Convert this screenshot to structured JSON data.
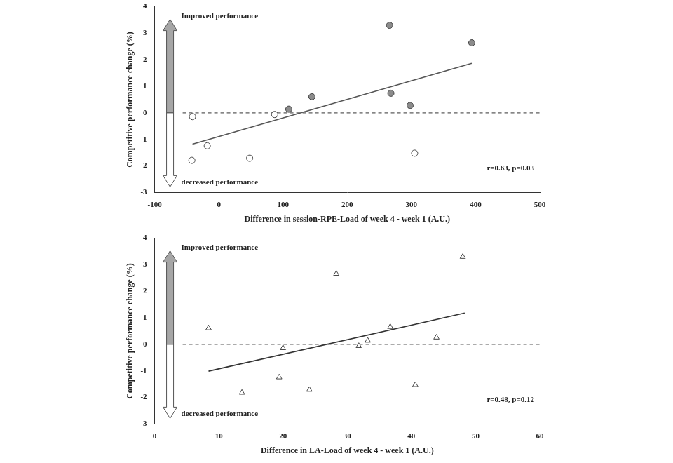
{
  "chart_data": [
    {
      "type": "scatter",
      "x_label": "Difference in session-RPE-Load of week 4 - week 1 (A.U.)",
      "y_label": "Competitive performance change (%)",
      "xlim": [
        -100,
        500
      ],
      "xticks": [
        -100,
        0,
        100,
        200,
        300,
        400,
        500
      ],
      "ylim": [
        -3,
        4
      ],
      "yticks": [
        -3,
        -2,
        -1,
        0,
        1,
        2,
        3,
        4
      ],
      "grid": false,
      "arrow_labels": {
        "up": "Improved performance",
        "down": "decreased performance"
      },
      "stats_label": "r=0.63, p=0.03",
      "reference_lines": [
        {
          "y": 0,
          "line_style": "dashed"
        }
      ],
      "series": [
        {
          "marker": "circle",
          "color": "#8c8c8c",
          "x": [
            109,
            145,
            266,
            268,
            298,
            394
          ],
          "values": [
            0.14,
            0.61,
            3.3,
            0.74,
            0.28,
            2.64
          ]
        },
        {
          "marker": "circle",
          "color": "#ffffff",
          "x": [
            -41,
            -42,
            -18,
            48,
            87,
            305
          ],
          "values": [
            -0.14,
            -1.79,
            -1.24,
            -1.71,
            -0.06,
            -1.52
          ]
        },
        {
          "type": "line",
          "line_style": "solid",
          "color": "#555555",
          "x": [
            -41,
            394
          ],
          "values": [
            -1.18,
            1.87
          ]
        }
      ]
    },
    {
      "type": "scatter",
      "x_label": "Difference in LA-Load of week 4 - week 1 (A.U.)",
      "y_label": "Competitive performance change (%)",
      "xlim": [
        0,
        60
      ],
      "xticks": [
        0,
        10,
        20,
        30,
        40,
        50,
        60
      ],
      "ylim": [
        -3,
        4
      ],
      "yticks": [
        -3,
        -2,
        -1,
        0,
        1,
        2,
        3,
        4
      ],
      "grid": false,
      "arrow_labels": {
        "up": "Improved performance",
        "down": "decreased performance"
      },
      "stats_label": "r=0.48, p=0.12",
      "reference_lines": [
        {
          "y": 0,
          "line_style": "dashed"
        }
      ],
      "series": [
        {
          "marker": "triangle",
          "color": "#ffffff",
          "x": [
            8.4,
            13.6,
            19.4,
            20,
            24.1,
            28.3,
            31.8,
            33.2,
            36.7,
            40.6,
            43.9,
            48
          ],
          "values": [
            0.61,
            -1.82,
            -1.24,
            -0.14,
            -1.71,
            2.66,
            -0.06,
            0.14,
            0.66,
            -1.53,
            0.26,
            3.3
          ]
        },
        {
          "type": "line",
          "line_style": "solid",
          "color": "#333333",
          "x": [
            8.4,
            48.3
          ],
          "values": [
            -1.01,
            1.18
          ]
        }
      ]
    }
  ]
}
